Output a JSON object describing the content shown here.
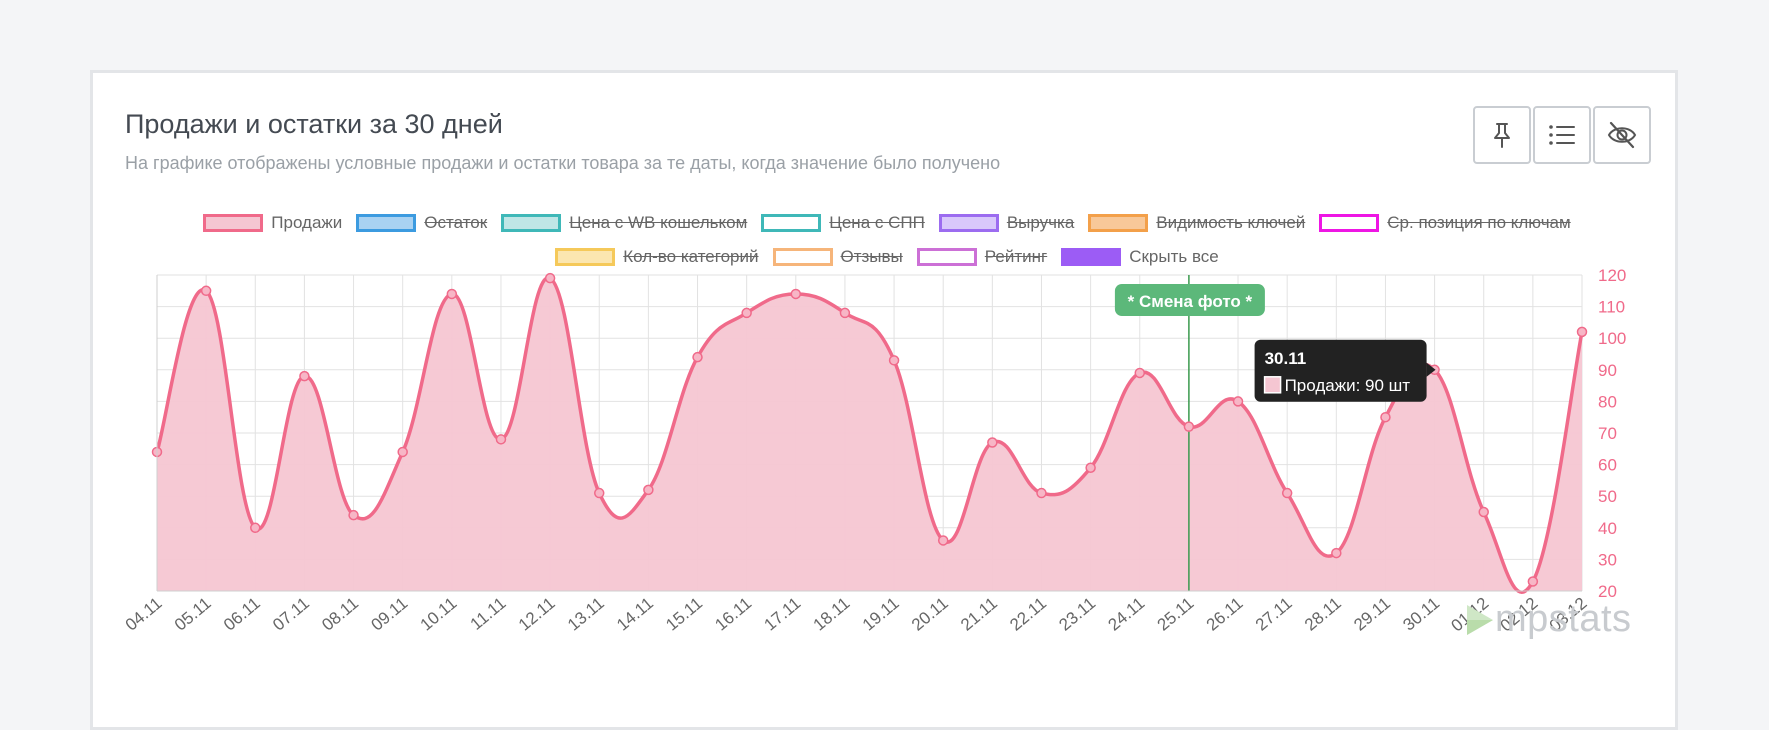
{
  "header": {
    "title": "Продажи и остатки за 30 дней",
    "subtitle": "На графике отображены условные продажи и остатки товара за те даты, когда значение было получено"
  },
  "toolbar": {
    "buttons": [
      {
        "icon": "pin-icon"
      },
      {
        "icon": "list-icon"
      },
      {
        "icon": "eye-off-icon"
      }
    ]
  },
  "legend": {
    "rows": [
      [
        {
          "label": "Продажи",
          "color": "#f06a8a",
          "fill": "#f5c6d2",
          "hidden": false
        },
        {
          "label": "Остаток",
          "color": "#3c9be0",
          "fill": "#a9d2f2",
          "hidden": true
        },
        {
          "label": "Цена с WB кошельком",
          "color": "#3fb8b8",
          "fill": "#bfe6e6",
          "hidden": true
        },
        {
          "label": "Цена с СПП",
          "color": "#3fb8b8",
          "fill": "#ffffff",
          "hidden": true
        },
        {
          "label": "Выручка",
          "color": "#9c6cf0",
          "fill": "#d9c8fb",
          "hidden": true
        },
        {
          "label": "Видимость ключей",
          "color": "#f3a04a",
          "fill": "#f8c899",
          "hidden": true
        },
        {
          "label": "Ср. позиция по ключам",
          "color": "#ee16e4",
          "fill": "#ffffff",
          "hidden": true
        }
      ],
      [
        {
          "label": "Кол-во категорий",
          "color": "#f5c95a",
          "fill": "#fbe6b0",
          "hidden": true
        },
        {
          "label": "Отзывы",
          "color": "#f6b57a",
          "fill": "#ffffff",
          "hidden": true
        },
        {
          "label": "Рейтинг",
          "color": "#cc70d6",
          "fill": "#ffffff",
          "hidden": true
        },
        {
          "label": "Скрыть все",
          "color": "#9c5cf5",
          "fill": "#9c5cf5",
          "hidden": false
        }
      ]
    ]
  },
  "annotation": {
    "label": "* Смена фото *",
    "date": "25.11",
    "color": "#5cb87a"
  },
  "tooltip": {
    "title": "30.11",
    "text": "Продажи: 90 шт"
  },
  "logo": {
    "text": "mpstats"
  },
  "chart_data": {
    "type": "line",
    "x": [
      "04.11",
      "05.11",
      "06.11",
      "07.11",
      "08.11",
      "09.11",
      "10.11",
      "11.11",
      "12.11",
      "13.11",
      "14.11",
      "15.11",
      "16.11",
      "17.11",
      "18.11",
      "19.11",
      "20.11",
      "21.11",
      "22.11",
      "23.11",
      "24.11",
      "25.11",
      "26.11",
      "27.11",
      "28.11",
      "29.11",
      "30.11",
      "01.12",
      "02.12",
      "03.12"
    ],
    "series": [
      {
        "name": "Продажи",
        "values": [
          64,
          115,
          40,
          88,
          44,
          64,
          114,
          68,
          119,
          51,
          52,
          94,
          108,
          114,
          108,
          93,
          36,
          67,
          51,
          59,
          89,
          72,
          80,
          51,
          32,
          75,
          90,
          45,
          23,
          102
        ]
      }
    ],
    "y_ticks": [
      20,
      30,
      40,
      50,
      60,
      70,
      80,
      90,
      100,
      110,
      120
    ],
    "ylim": [
      20,
      120
    ],
    "y_axis_side": "right",
    "grid": true,
    "area_fill": true
  }
}
